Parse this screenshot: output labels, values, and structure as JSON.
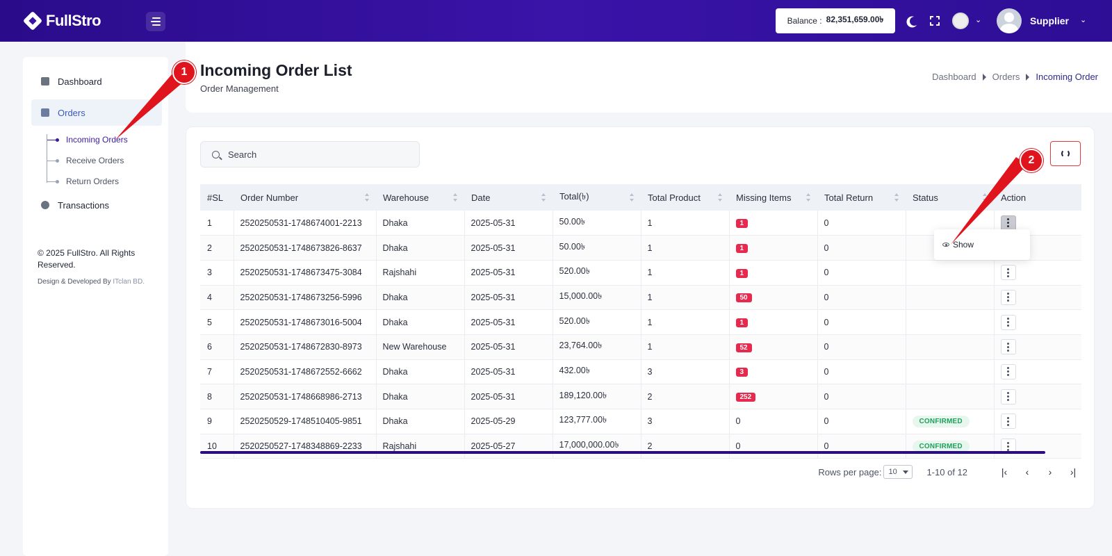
{
  "app": {
    "logo_text": "FullStro"
  },
  "topbar": {
    "balance_label": "Balance :",
    "balance_value": "82,351,659.00৳",
    "user_name": "Supplier",
    "icons": [
      "menu-icon",
      "moon-icon",
      "fullscreen-icon",
      "language-flag-icon",
      "avatar"
    ]
  },
  "sidebar": {
    "items": [
      {
        "label": "Dashboard",
        "icon": "dashboard-icon"
      },
      {
        "label": "Orders",
        "icon": "orders-icon"
      },
      {
        "label": "Transactions",
        "icon": "transactions-icon"
      }
    ],
    "sub_items": [
      {
        "label": "Incoming Orders"
      },
      {
        "label": "Receive Orders"
      },
      {
        "label": "Return Orders"
      }
    ],
    "copyright": "© 2025 FullStro. All Rights Reserved.",
    "credits_prefix": "Design & Developed By",
    "credits_brand": "ITclan BD."
  },
  "header": {
    "title": "Incoming Order List",
    "subtitle": "Order Management",
    "breadcrumb": [
      "Dashboard",
      "Orders",
      "Incoming Order"
    ]
  },
  "search": {
    "placeholder": "Search"
  },
  "table": {
    "columns": [
      "#SL",
      "Order Number",
      "Warehouse",
      "Date",
      "Total(৳)",
      "Total Product",
      "Missing Items",
      "Total Return",
      "Status",
      "Action"
    ],
    "rows": [
      {
        "sl": "1",
        "order": "2520250531-1748674001-2213",
        "warehouse": "Dhaka",
        "date": "2025-05-31",
        "total": "50.00৳",
        "products": "1",
        "missing": "1",
        "returned": "0",
        "status": ""
      },
      {
        "sl": "2",
        "order": "2520250531-1748673826-8637",
        "warehouse": "Dhaka",
        "date": "2025-05-31",
        "total": "50.00৳",
        "products": "1",
        "missing": "1",
        "returned": "0",
        "status": ""
      },
      {
        "sl": "3",
        "order": "2520250531-1748673475-3084",
        "warehouse": "Rajshahi",
        "date": "2025-05-31",
        "total": "520.00৳",
        "products": "1",
        "missing": "1",
        "returned": "0",
        "status": ""
      },
      {
        "sl": "4",
        "order": "2520250531-1748673256-5996",
        "warehouse": "Dhaka",
        "date": "2025-05-31",
        "total": "15,000.00৳",
        "products": "1",
        "missing": "50",
        "returned": "0",
        "status": ""
      },
      {
        "sl": "5",
        "order": "2520250531-1748673016-5004",
        "warehouse": "Dhaka",
        "date": "2025-05-31",
        "total": "520.00৳",
        "products": "1",
        "missing": "1",
        "returned": "0",
        "status": ""
      },
      {
        "sl": "6",
        "order": "2520250531-1748672830-8973",
        "warehouse": "New Warehouse",
        "date": "2025-05-31",
        "total": "23,764.00৳",
        "products": "1",
        "missing": "52",
        "returned": "0",
        "status": ""
      },
      {
        "sl": "7",
        "order": "2520250531-1748672552-6662",
        "warehouse": "Dhaka",
        "date": "2025-05-31",
        "total": "432.00৳",
        "products": "3",
        "missing": "3",
        "returned": "0",
        "status": ""
      },
      {
        "sl": "8",
        "order": "2520250531-1748668986-2713",
        "warehouse": "Dhaka",
        "date": "2025-05-31",
        "total": "189,120.00৳",
        "products": "2",
        "missing": "252",
        "returned": "0",
        "status": ""
      },
      {
        "sl": "9",
        "order": "2520250529-1748510405-9851",
        "warehouse": "Dhaka",
        "date": "2025-05-29",
        "total": "123,777.00৳",
        "products": "3",
        "missing": "0",
        "returned": "0",
        "status": "CONFIRMED"
      },
      {
        "sl": "10",
        "order": "2520250527-1748348869-2233",
        "warehouse": "Rajshahi",
        "date": "2025-05-27",
        "total": "17,000,000.00৳",
        "products": "2",
        "missing": "0",
        "returned": "0",
        "status": "CONFIRMED"
      }
    ]
  },
  "dropdown": {
    "show_label": "Show"
  },
  "pagination": {
    "rows_label": "Rows per page:",
    "rows_value": "10",
    "range": "1-10 of 12"
  },
  "annotations": [
    "1",
    "2"
  ],
  "colors": {
    "primary": "#2a0c8a",
    "danger": "#e6294c",
    "success": "#1ea05b",
    "callout": "#e0141c"
  }
}
